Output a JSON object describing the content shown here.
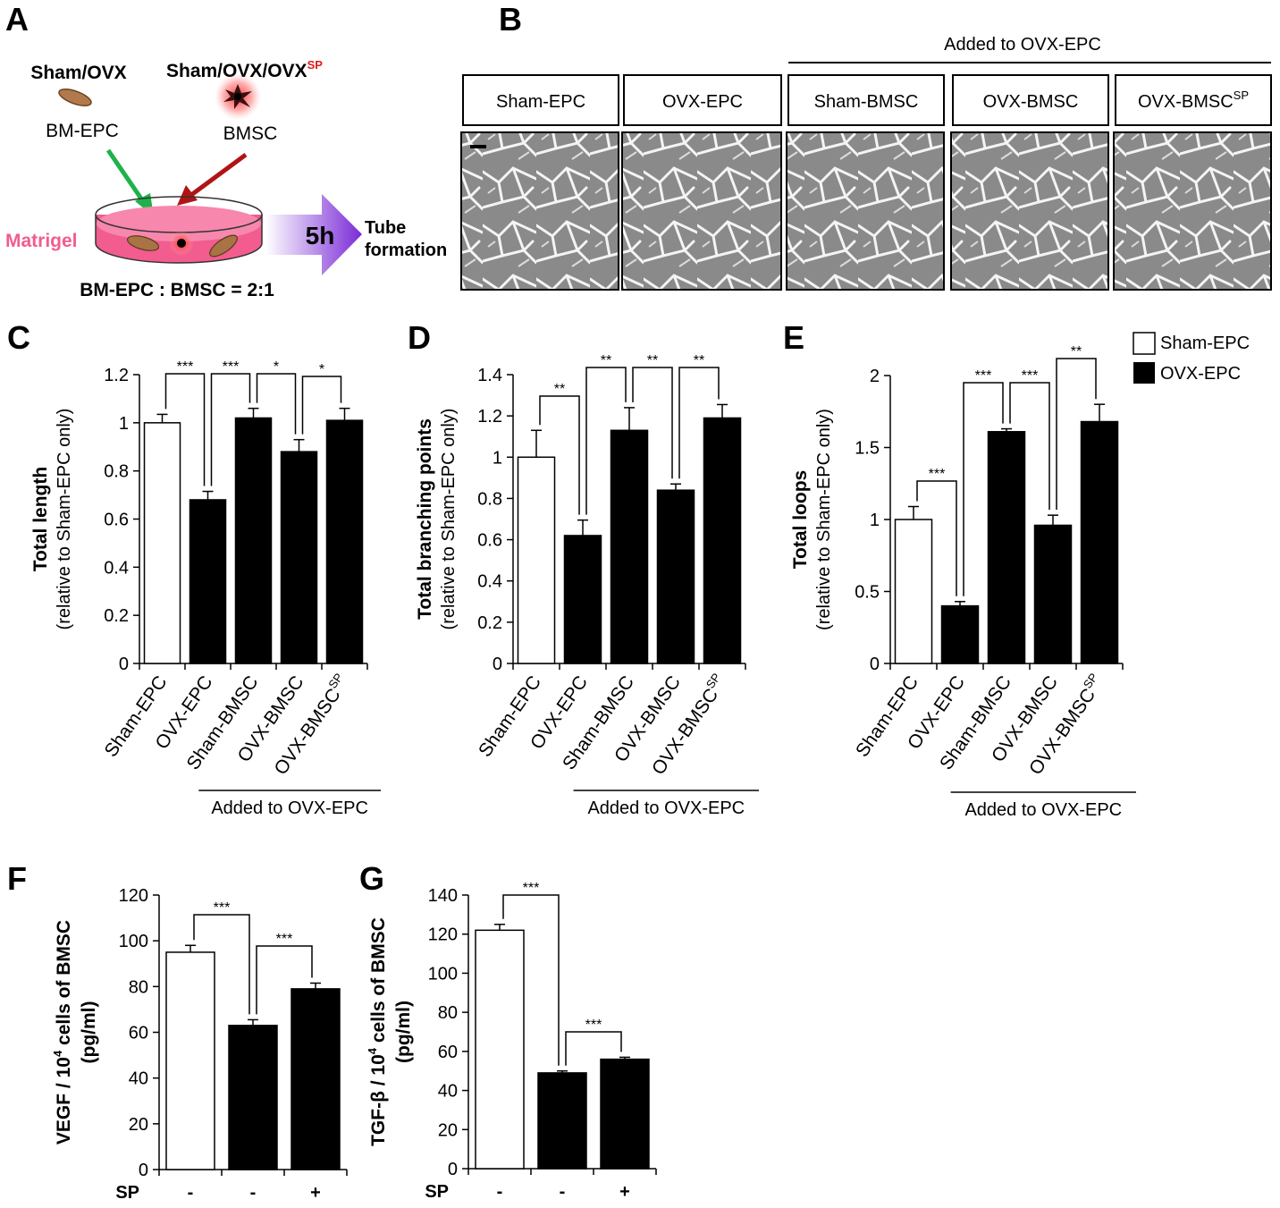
{
  "panel_letters": {
    "a": "A",
    "b": "B",
    "c": "C",
    "d": "D",
    "e": "E",
    "f": "F",
    "g": "G"
  },
  "schematic": {
    "left_group": "Sham/OVX",
    "right_group": "Sham/OVX/OVX",
    "right_group_sup": "SP",
    "left_cell": "BM-EPC",
    "right_cell": "BMSC",
    "matrigel": "Matrigel",
    "time": "5h",
    "outcome_line1": "Tube",
    "outcome_line2": "formation",
    "ratio": "BM-EPC : BMSC = 2:1"
  },
  "micrographs": {
    "added_label": "Added to OVX-EPC",
    "labels": [
      "Sham-EPC",
      "OVX-EPC",
      "Sham-BMSC",
      "OVX-BMSC",
      "OVX-BMSC"
    ],
    "last_label_sup": "SP"
  },
  "legend": {
    "open": "Sham-EPC",
    "filled": "OVX-EPC",
    "open_color": "#ffffff",
    "filled_color": "#000000"
  },
  "chart_data": [
    {
      "id": "C",
      "type": "bar",
      "categories": [
        "Sham-EPC",
        "OVX-EPC",
        "Sham-BMSC",
        "OVX-BMSC",
        "OVX-BMSC"
      ],
      "last_category_sup": "SP",
      "values": [
        1.0,
        0.68,
        1.02,
        0.88,
        1.01
      ],
      "errors": [
        0.035,
        0.035,
        0.04,
        0.05,
        0.05
      ],
      "fills": [
        "#ffffff",
        "#000000",
        "#000000",
        "#000000",
        "#000000"
      ],
      "ylabel_bold": "Total length",
      "ylabel_sub": "(relative to Sham-EPC only)",
      "ylim": [
        0,
        1.2
      ],
      "yticks": [
        "0",
        "0.2",
        "0.4",
        "0.6",
        "0.8",
        "1",
        "1.2"
      ],
      "group_label": "Added to OVX-EPC",
      "significance": [
        {
          "from": 0,
          "to": 1,
          "label": "***"
        },
        {
          "from": 1,
          "to": 2,
          "label": "***"
        },
        {
          "from": 2,
          "to": 3,
          "label": "*"
        },
        {
          "from": 3,
          "to": 4,
          "label": "*"
        }
      ]
    },
    {
      "id": "D",
      "type": "bar",
      "categories": [
        "Sham-EPC",
        "OVX-EPC",
        "Sham-BMSC",
        "OVX-BMSC",
        "OVX-BMSC"
      ],
      "last_category_sup": "SP",
      "values": [
        1.0,
        0.62,
        1.13,
        0.84,
        1.19
      ],
      "errors": [
        0.13,
        0.075,
        0.11,
        0.03,
        0.065
      ],
      "fills": [
        "#ffffff",
        "#000000",
        "#000000",
        "#000000",
        "#000000"
      ],
      "ylabel_bold": "Total branching points",
      "ylabel_sub": "(relative to Sham-EPC only)",
      "ylim": [
        0,
        1.4
      ],
      "yticks": [
        "0",
        "0.2",
        "0.4",
        "0.6",
        "0.8",
        "1",
        "1.2",
        "1.4"
      ],
      "group_label": "Added to OVX-EPC",
      "significance": [
        {
          "from": 0,
          "to": 1,
          "label": "**"
        },
        {
          "from": 1,
          "to": 2,
          "label": "**"
        },
        {
          "from": 2,
          "to": 3,
          "label": "**"
        },
        {
          "from": 3,
          "to": 4,
          "label": "**"
        }
      ]
    },
    {
      "id": "E",
      "type": "bar",
      "categories": [
        "Sham-EPC",
        "OVX-EPC",
        "Sham-BMSC",
        "OVX-BMSC",
        "OVX-BMSC"
      ],
      "last_category_sup": "SP",
      "values": [
        1.0,
        0.4,
        1.61,
        0.96,
        1.68
      ],
      "errors": [
        0.09,
        0.03,
        0.02,
        0.07,
        0.12
      ],
      "fills": [
        "#ffffff",
        "#000000",
        "#000000",
        "#000000",
        "#000000"
      ],
      "ylabel_bold": "Total loops",
      "ylabel_sub": "(relative to Sham-EPC only)",
      "ylim": [
        0,
        2
      ],
      "yticks": [
        "0",
        "0.5",
        "1",
        "1.5",
        "2"
      ],
      "group_label": "Added to OVX-EPC",
      "significance": [
        {
          "from": 0,
          "to": 1,
          "label": "***"
        },
        {
          "from": 1,
          "to": 2,
          "label": "***"
        },
        {
          "from": 2,
          "to": 3,
          "label": "***"
        },
        {
          "from": 3,
          "to": 4,
          "label": "**"
        }
      ]
    },
    {
      "id": "F",
      "type": "bar",
      "categories": [
        "-",
        "-",
        "+"
      ],
      "row_label": "SP",
      "values": [
        95,
        63,
        79
      ],
      "errors": [
        3,
        2.5,
        2.5
      ],
      "fills": [
        "#ffffff",
        "#000000",
        "#000000"
      ],
      "ylabel_pre": "VEGF / 10",
      "ylabel_sup": "4",
      "ylabel_post": " cells of BMSC",
      "ylabel_units": "(pg/ml)",
      "ylim": [
        0,
        120
      ],
      "yticks": [
        "0",
        "20",
        "40",
        "60",
        "80",
        "100",
        "120"
      ],
      "significance": [
        {
          "from": 0,
          "to": 1,
          "label": "***"
        },
        {
          "from": 1,
          "to": 2,
          "label": "***"
        }
      ]
    },
    {
      "id": "G",
      "type": "bar",
      "categories": [
        "-",
        "-",
        "+"
      ],
      "row_label": "SP",
      "values": [
        122,
        49,
        56
      ],
      "errors": [
        3,
        1,
        1
      ],
      "fills": [
        "#ffffff",
        "#000000",
        "#000000"
      ],
      "ylabel_pre": "TGF-β / 10",
      "ylabel_sup": "4",
      "ylabel_post": " cells of BMSC",
      "ylabel_units": "(pg/ml)",
      "ylim": [
        0,
        140
      ],
      "yticks": [
        "0",
        "20",
        "40",
        "60",
        "80",
        "100",
        "120",
        "140"
      ],
      "significance": [
        {
          "from": 0,
          "to": 1,
          "label": "***"
        },
        {
          "from": 1,
          "to": 2,
          "label": "***"
        }
      ]
    }
  ]
}
